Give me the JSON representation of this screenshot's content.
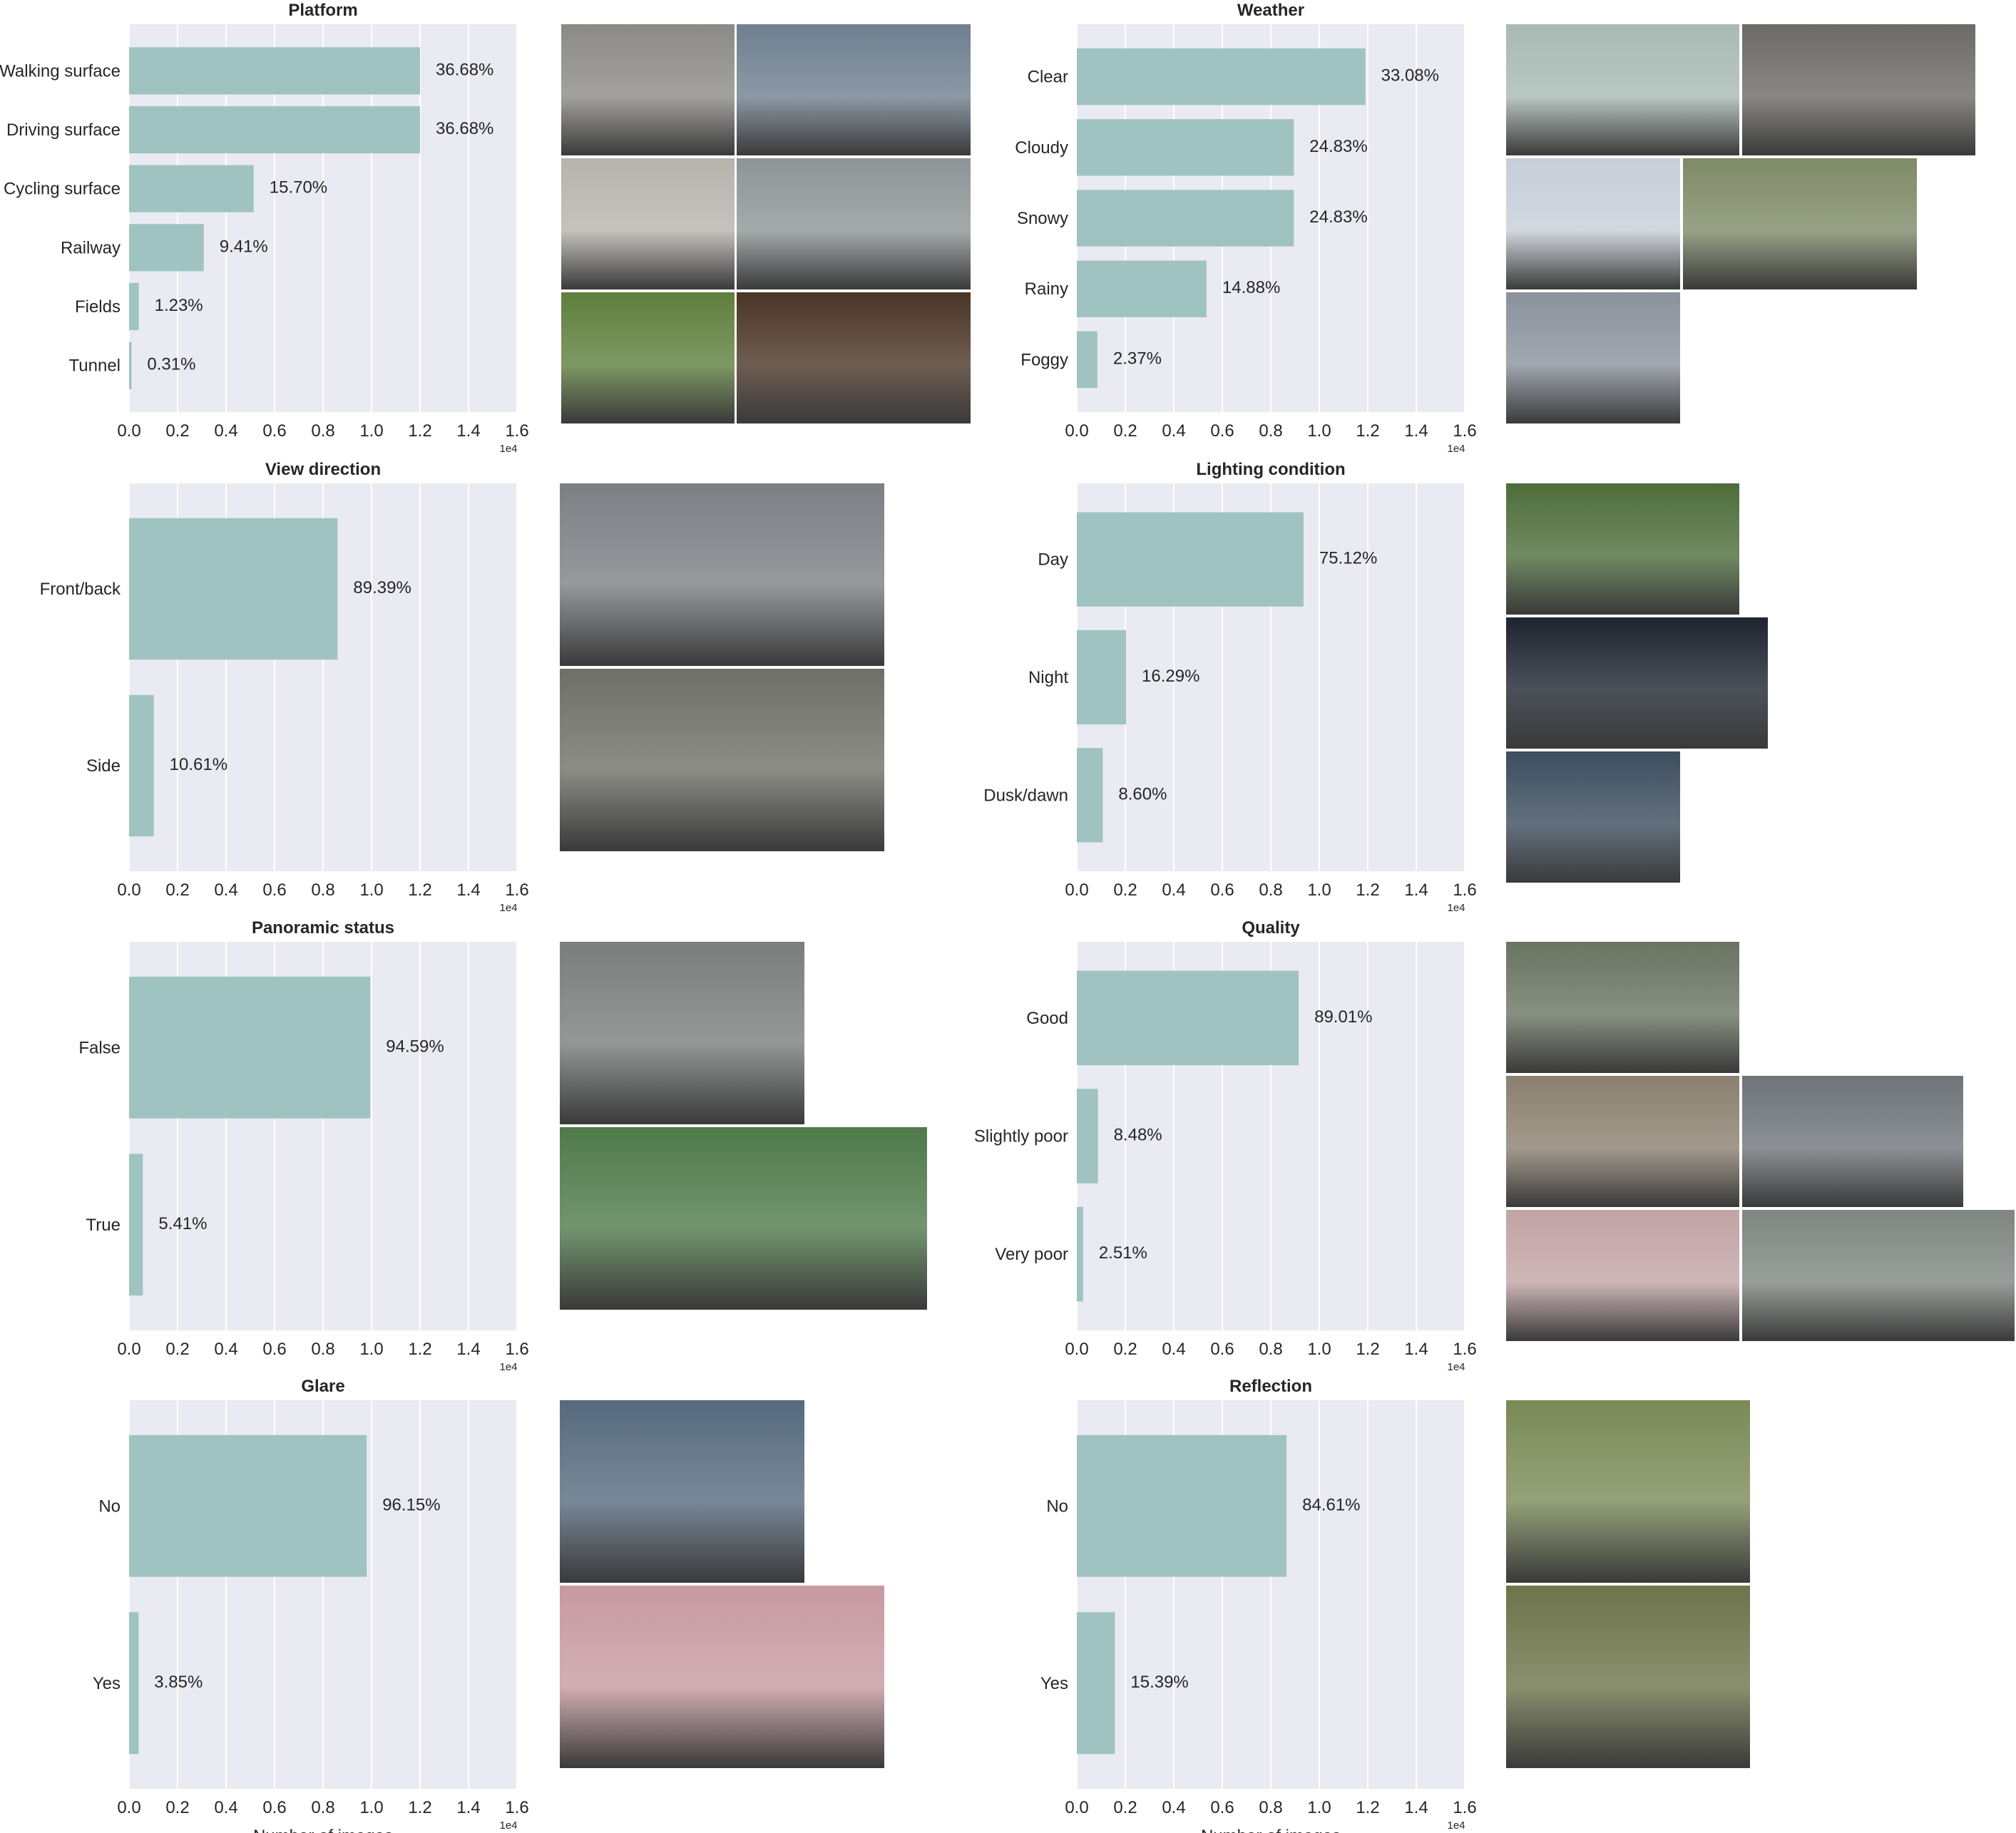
{
  "colors": {
    "bar": "#9fc3c0",
    "panel_bg": "#eaeaf2",
    "grid": "#ffffff",
    "text": "#262626"
  },
  "x_ticks": [
    "0.0",
    "0.2",
    "0.4",
    "0.6",
    "0.8",
    "1.0",
    "1.2",
    "1.4",
    "1.6"
  ],
  "x_offset_label": "1e4",
  "xlabel": "Number of images",
  "chart_data": [
    {
      "type": "bar",
      "orientation": "horizontal",
      "title": "Platform",
      "xlim": [
        0,
        16000
      ],
      "categories": [
        "Walking surface",
        "Driving surface",
        "Cycling surface",
        "Railway",
        "Fields",
        "Tunnel"
      ],
      "values": [
        12000,
        12000,
        5140,
        3080,
        400,
        100
      ],
      "labels": [
        "36.68%",
        "36.68%",
        "15.70%",
        "9.41%",
        "1.23%",
        "0.31%"
      ]
    },
    {
      "type": "bar",
      "orientation": "horizontal",
      "title": "Weather",
      "xlim": [
        0,
        16000
      ],
      "categories": [
        "Clear",
        "Cloudy",
        "Snowy",
        "Rainy",
        "Foggy"
      ],
      "values": [
        11900,
        8950,
        8950,
        5350,
        850
      ],
      "labels": [
        "33.08%",
        "24.83%",
        "24.83%",
        "14.88%",
        "2.37%"
      ]
    },
    {
      "type": "bar",
      "orientation": "horizontal",
      "title": "View direction",
      "xlim": [
        0,
        16000
      ],
      "categories": [
        "Front/back",
        "Side"
      ],
      "values": [
        8600,
        1020
      ],
      "labels": [
        "89.39%",
        "10.61%"
      ]
    },
    {
      "type": "bar",
      "orientation": "horizontal",
      "title": "Lighting condition",
      "xlim": [
        0,
        16000
      ],
      "categories": [
        "Day",
        "Night",
        "Dusk/dawn"
      ],
      "values": [
        9350,
        2030,
        1070
      ],
      "labels": [
        "75.12%",
        "16.29%",
        "8.60%"
      ]
    },
    {
      "type": "bar",
      "orientation": "horizontal",
      "title": "Panoramic status",
      "xlim": [
        0,
        16000
      ],
      "categories": [
        "False",
        "True"
      ],
      "values": [
        9950,
        570
      ],
      "labels": [
        "94.59%",
        "5.41%"
      ]
    },
    {
      "type": "bar",
      "orientation": "horizontal",
      "title": "Quality",
      "xlim": [
        0,
        16000
      ],
      "categories": [
        "Good",
        "Slightly poor",
        "Very poor"
      ],
      "values": [
        9150,
        870,
        260
      ],
      "labels": [
        "89.01%",
        "8.48%",
        "2.51%"
      ]
    },
    {
      "type": "bar",
      "orientation": "horizontal",
      "title": "Glare",
      "xlim": [
        0,
        16000
      ],
      "categories": [
        "No",
        "Yes"
      ],
      "values": [
        9800,
        390
      ],
      "labels": [
        "96.15%",
        "3.85%"
      ]
    },
    {
      "type": "bar",
      "orientation": "horizontal",
      "title": "Reflection",
      "xlim": [
        0,
        16000
      ],
      "categories": [
        "No",
        "Yes"
      ],
      "values": [
        8650,
        1570
      ],
      "labels": [
        "84.61%",
        "15.39%"
      ]
    }
  ]
}
